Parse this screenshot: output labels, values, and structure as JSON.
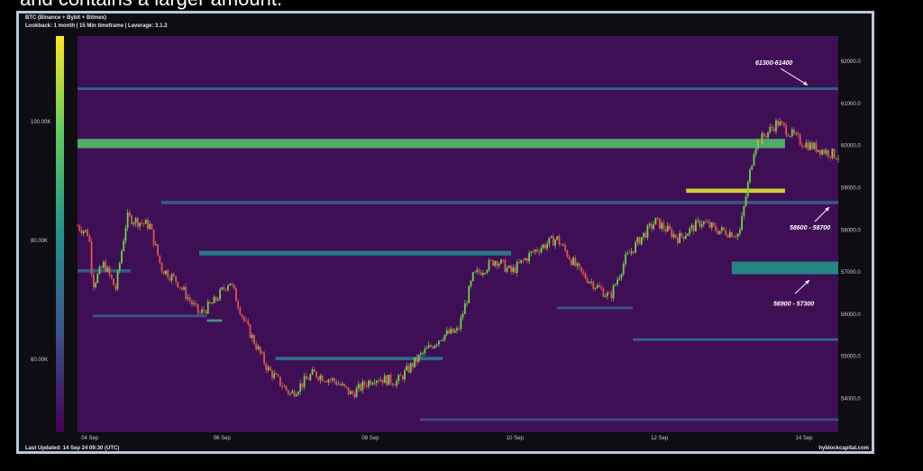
{
  "caption": "and contains a larger amount.",
  "header": {
    "line1": "BTC (Binance + Bybit + Bitmex)",
    "line2": "Lookback: 1 month | 15 Min timeframe | Leverage: 3.1.2"
  },
  "footer": {
    "left": "Last Updated: 14 Sep 24 09:30 (UTC)",
    "right": "hyblockcapital.com"
  },
  "colors": {
    "background": "#3f0f55",
    "up": "#6fd24e",
    "down": "#e0564f"
  },
  "chart_data": {
    "type": "heatmap",
    "title": "",
    "xlabel": "",
    "ylabel": "",
    "ylim": [
      53200,
      62600
    ],
    "x_ticks": [
      "04 Sep",
      "06 Sep",
      "08 Sep",
      "10 Sep",
      "12 Sep",
      "14 Sep"
    ],
    "y_ticks": [
      {
        "value": 62000,
        "label": "62000.0"
      },
      {
        "value": 61000,
        "label": "61000.0"
      },
      {
        "value": 60000,
        "label": "60000.0"
      },
      {
        "value": 59000,
        "label": "59000.0"
      },
      {
        "value": 58000,
        "label": "58000.0"
      },
      {
        "value": 57000,
        "label": "57000.0"
      },
      {
        "value": 56000,
        "label": "56000.0"
      },
      {
        "value": 55000,
        "label": "55000.0"
      },
      {
        "value": 54000,
        "label": "54000.0"
      }
    ],
    "colorbar_ticks": [
      "100.00K",
      "80.00K",
      "60.00K"
    ],
    "annotations": [
      {
        "text": "61300-61400",
        "price": 61350
      },
      {
        "text": "58600 - 58700",
        "price": 58650
      },
      {
        "text": "56900 - 57300",
        "price": 57100
      }
    ],
    "liquidity_bands": [
      {
        "price": 61350,
        "start": 0.0,
        "end": 1.0,
        "intensity": 0.35,
        "thickness": 60
      },
      {
        "price": 60050,
        "start": 0.0,
        "end": 0.93,
        "intensity": 0.7,
        "thickness": 220
      },
      {
        "price": 58650,
        "start": 0.11,
        "end": 1.0,
        "intensity": 0.3,
        "thickness": 80
      },
      {
        "price": 58930,
        "start": 0.8,
        "end": 0.93,
        "intensity": 0.95,
        "thickness": 100
      },
      {
        "price": 57100,
        "start": 0.86,
        "end": 1.0,
        "intensity": 0.5,
        "thickness": 300
      },
      {
        "price": 57450,
        "start": 0.16,
        "end": 0.57,
        "intensity": 0.45,
        "thickness": 110
      },
      {
        "price": 57030,
        "start": 0.0,
        "end": 0.07,
        "intensity": 0.3,
        "thickness": 80
      },
      {
        "price": 55960,
        "start": 0.02,
        "end": 0.17,
        "intensity": 0.3,
        "thickness": 60
      },
      {
        "price": 55850,
        "start": 0.17,
        "end": 0.19,
        "intensity": 0.6,
        "thickness": 60
      },
      {
        "price": 55400,
        "start": 0.73,
        "end": 1.0,
        "intensity": 0.4,
        "thickness": 60
      },
      {
        "price": 54950,
        "start": 0.26,
        "end": 0.48,
        "intensity": 0.4,
        "thickness": 80
      },
      {
        "price": 53500,
        "start": 0.45,
        "end": 1.0,
        "intensity": 0.25,
        "thickness": 60
      },
      {
        "price": 56150,
        "start": 0.63,
        "end": 0.73,
        "intensity": 0.3,
        "thickness": 60
      }
    ],
    "price_path": [
      [
        0.0,
        58100
      ],
      [
        0.015,
        57900
      ],
      [
        0.02,
        56700
      ],
      [
        0.035,
        57200
      ],
      [
        0.05,
        56600
      ],
      [
        0.065,
        58300
      ],
      [
        0.08,
        58200
      ],
      [
        0.095,
        58100
      ],
      [
        0.11,
        57100
      ],
      [
        0.13,
        56800
      ],
      [
        0.16,
        56000
      ],
      [
        0.18,
        56300
      ],
      [
        0.2,
        56800
      ],
      [
        0.22,
        55800
      ],
      [
        0.25,
        54700
      ],
      [
        0.28,
        54100
      ],
      [
        0.31,
        54600
      ],
      [
        0.34,
        54400
      ],
      [
        0.36,
        54100
      ],
      [
        0.39,
        54500
      ],
      [
        0.42,
        54400
      ],
      [
        0.45,
        55000
      ],
      [
        0.48,
        55500
      ],
      [
        0.5,
        55600
      ],
      [
        0.52,
        56900
      ],
      [
        0.55,
        57300
      ],
      [
        0.57,
        57000
      ],
      [
        0.6,
        57500
      ],
      [
        0.63,
        57800
      ],
      [
        0.66,
        57000
      ],
      [
        0.68,
        56700
      ],
      [
        0.7,
        56400
      ],
      [
        0.72,
        57300
      ],
      [
        0.74,
        57800
      ],
      [
        0.76,
        58200
      ],
      [
        0.79,
        57800
      ],
      [
        0.82,
        58200
      ],
      [
        0.84,
        58000
      ],
      [
        0.87,
        57900
      ],
      [
        0.89,
        60000
      ],
      [
        0.92,
        60550
      ],
      [
        0.95,
        60100
      ],
      [
        0.97,
        59950
      ],
      [
        1.0,
        59750
      ]
    ]
  }
}
